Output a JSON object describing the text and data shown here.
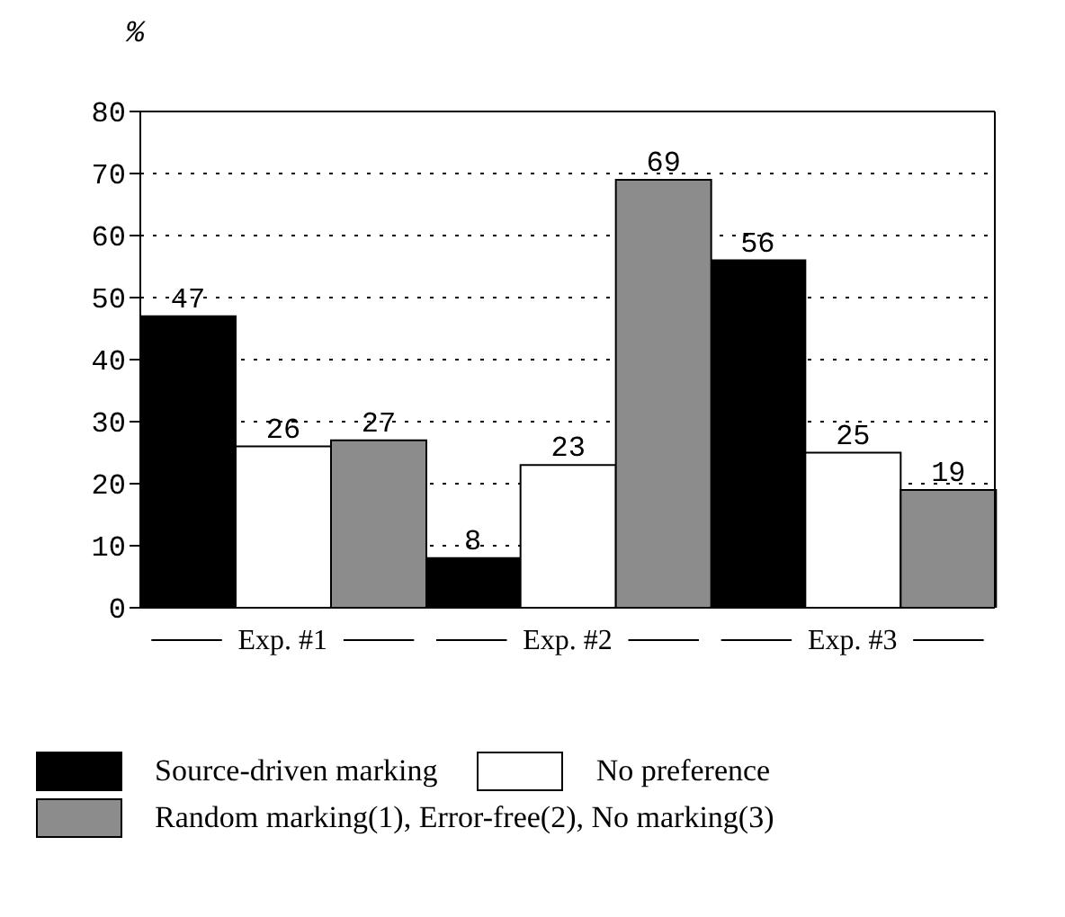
{
  "chart_data": {
    "type": "bar",
    "ylabel": "%",
    "categories": [
      "Exp. #1",
      "Exp. #2",
      "Exp. #3"
    ],
    "series": [
      {
        "name": "Source-driven marking",
        "color": "#000000",
        "values": [
          47,
          8,
          56
        ]
      },
      {
        "name": "No preference",
        "color": "#ffffff",
        "values": [
          26,
          23,
          25
        ]
      },
      {
        "name": "Random marking(1), Error-free(2), No marking(3)",
        "color": "#8c8c8c",
        "values": [
          27,
          69,
          19
        ]
      }
    ],
    "ylim": [
      0,
      80
    ],
    "yticks": [
      0,
      10,
      20,
      30,
      40,
      50,
      60,
      70,
      80
    ],
    "grid": "y",
    "data_labels": true,
    "legend": "bottom"
  }
}
